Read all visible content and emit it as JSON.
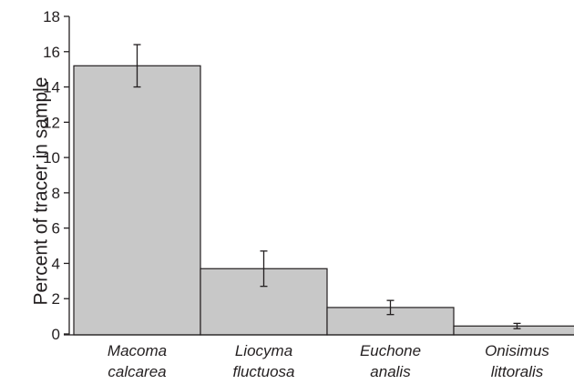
{
  "chart_data": {
    "type": "bar",
    "categories": [
      [
        "Macoma",
        "calcarea"
      ],
      [
        "Liocyma",
        "fluctuosa"
      ],
      [
        "Euchone",
        "analis"
      ],
      [
        "Onisimus",
        "littoralis"
      ]
    ],
    "values": [
      15.2,
      3.7,
      1.5,
      0.45
    ],
    "error": [
      1.2,
      1.0,
      0.4,
      0.15
    ],
    "ylabel": "Percent of tracer in sample",
    "xlabel": "",
    "title": "",
    "ylim": [
      0,
      18
    ],
    "yticks": [
      0,
      2,
      4,
      6,
      8,
      10,
      12,
      14,
      16,
      18
    ],
    "grid": false,
    "legend": "none",
    "bar_color": "#c8c8c8",
    "edge_color": "#231f20"
  }
}
